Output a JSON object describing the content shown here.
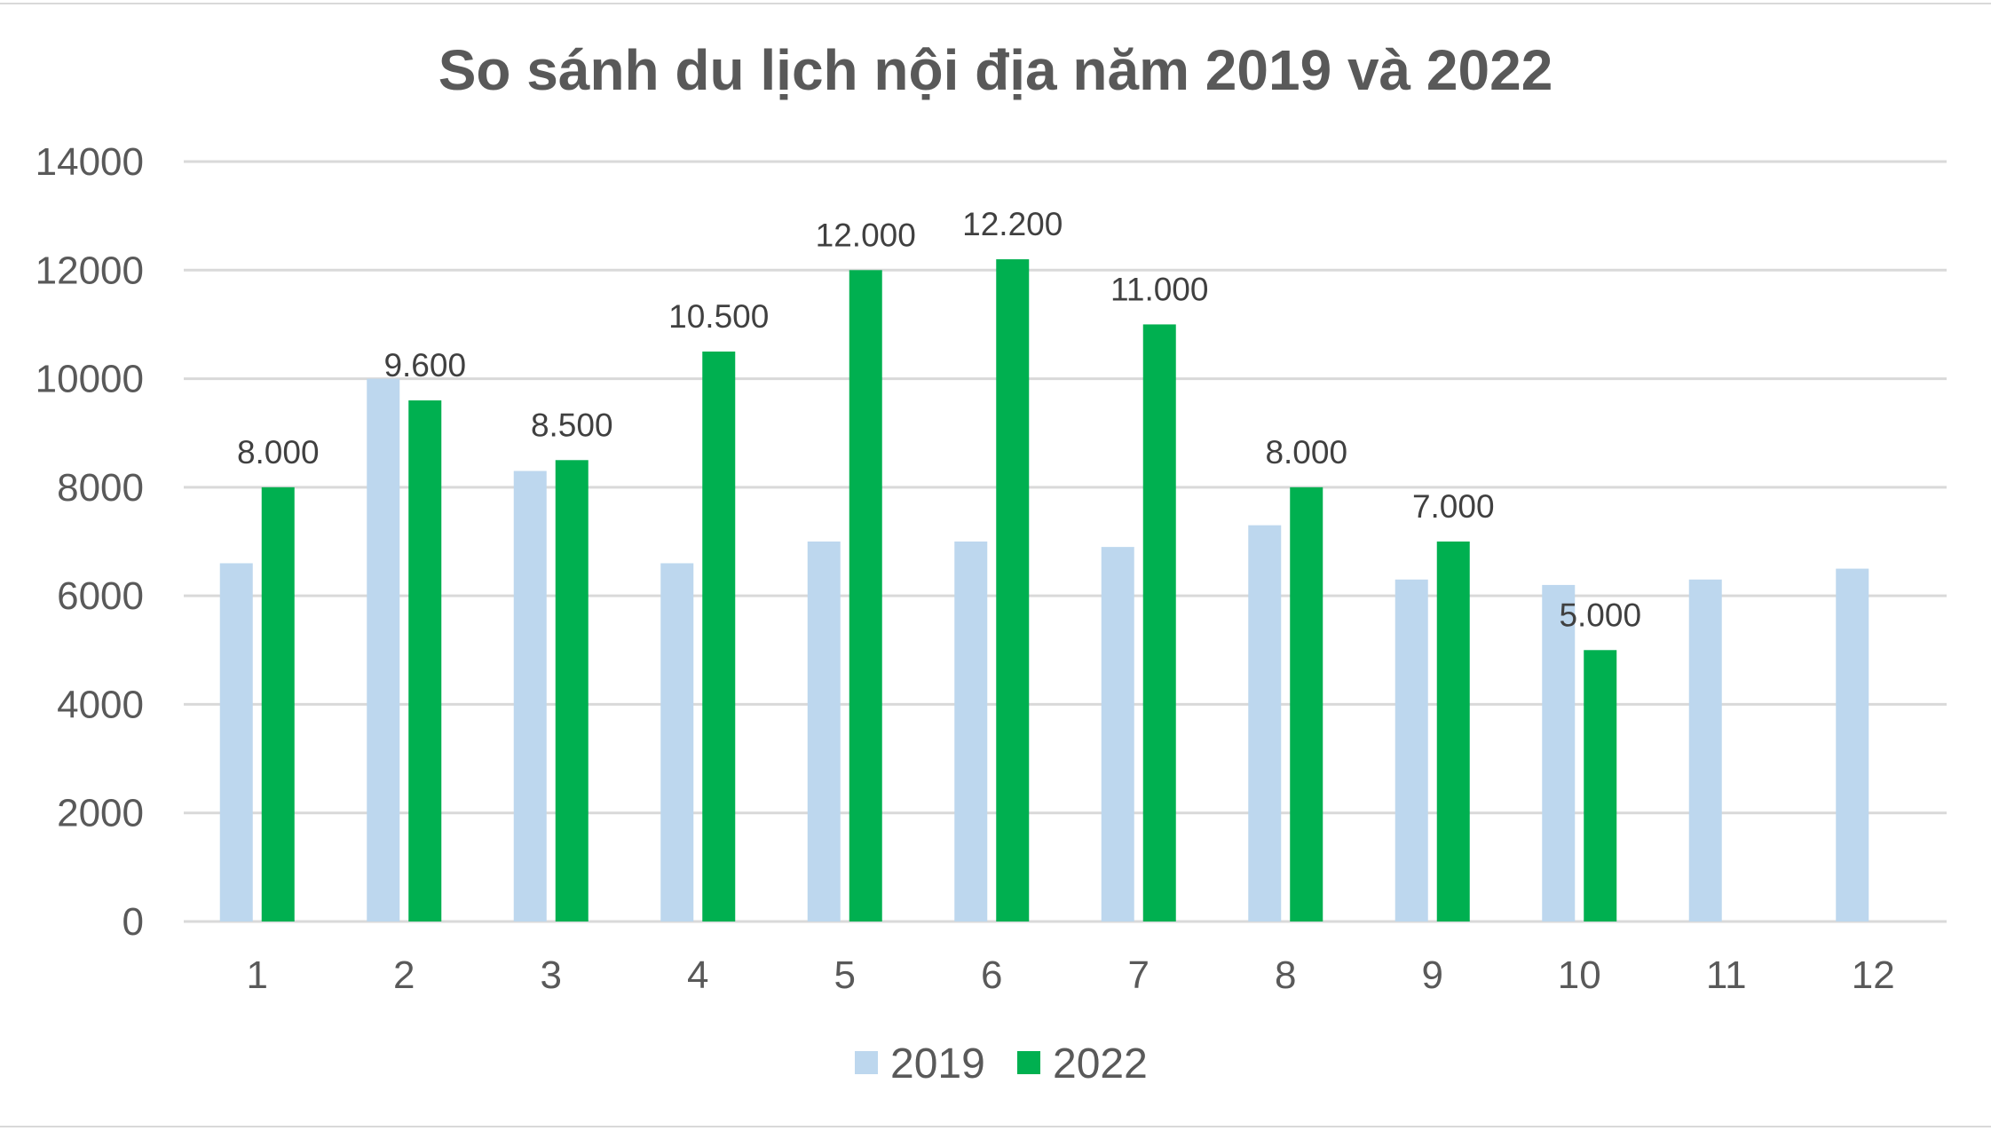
{
  "chart_data": {
    "type": "bar",
    "title": "So sánh du lịch nội địa năm 2019 và 2022",
    "categories": [
      "1",
      "2",
      "3",
      "4",
      "5",
      "6",
      "7",
      "8",
      "9",
      "10",
      "11",
      "12"
    ],
    "series": [
      {
        "name": "2019",
        "color": "#bdd7ee",
        "values": [
          6600,
          10000,
          8300,
          6600,
          7000,
          7000,
          6900,
          7300,
          6300,
          6200,
          6300,
          6500
        ],
        "data_labels": [
          null,
          null,
          null,
          null,
          null,
          null,
          null,
          null,
          null,
          null,
          null,
          null
        ]
      },
      {
        "name": "2022",
        "color": "#00b050",
        "values": [
          8000,
          9600,
          8500,
          10500,
          12000,
          12200,
          11000,
          8000,
          7000,
          5000,
          null,
          null
        ],
        "data_labels": [
          "8.000",
          "9.600",
          "8.500",
          "10.500",
          "12.000",
          "12.200",
          "11.000",
          "8.000",
          "7.000",
          "5.000",
          null,
          null
        ]
      }
    ],
    "ylim": [
      0,
      14000
    ],
    "yticks": [
      "0",
      "2000",
      "4000",
      "6000",
      "8000",
      "10000",
      "12000",
      "14000"
    ],
    "ytick_values": [
      0,
      2000,
      4000,
      6000,
      8000,
      10000,
      12000,
      14000
    ],
    "grid": true,
    "legend": "bottom",
    "gridline_color": "#d9d9d9"
  }
}
